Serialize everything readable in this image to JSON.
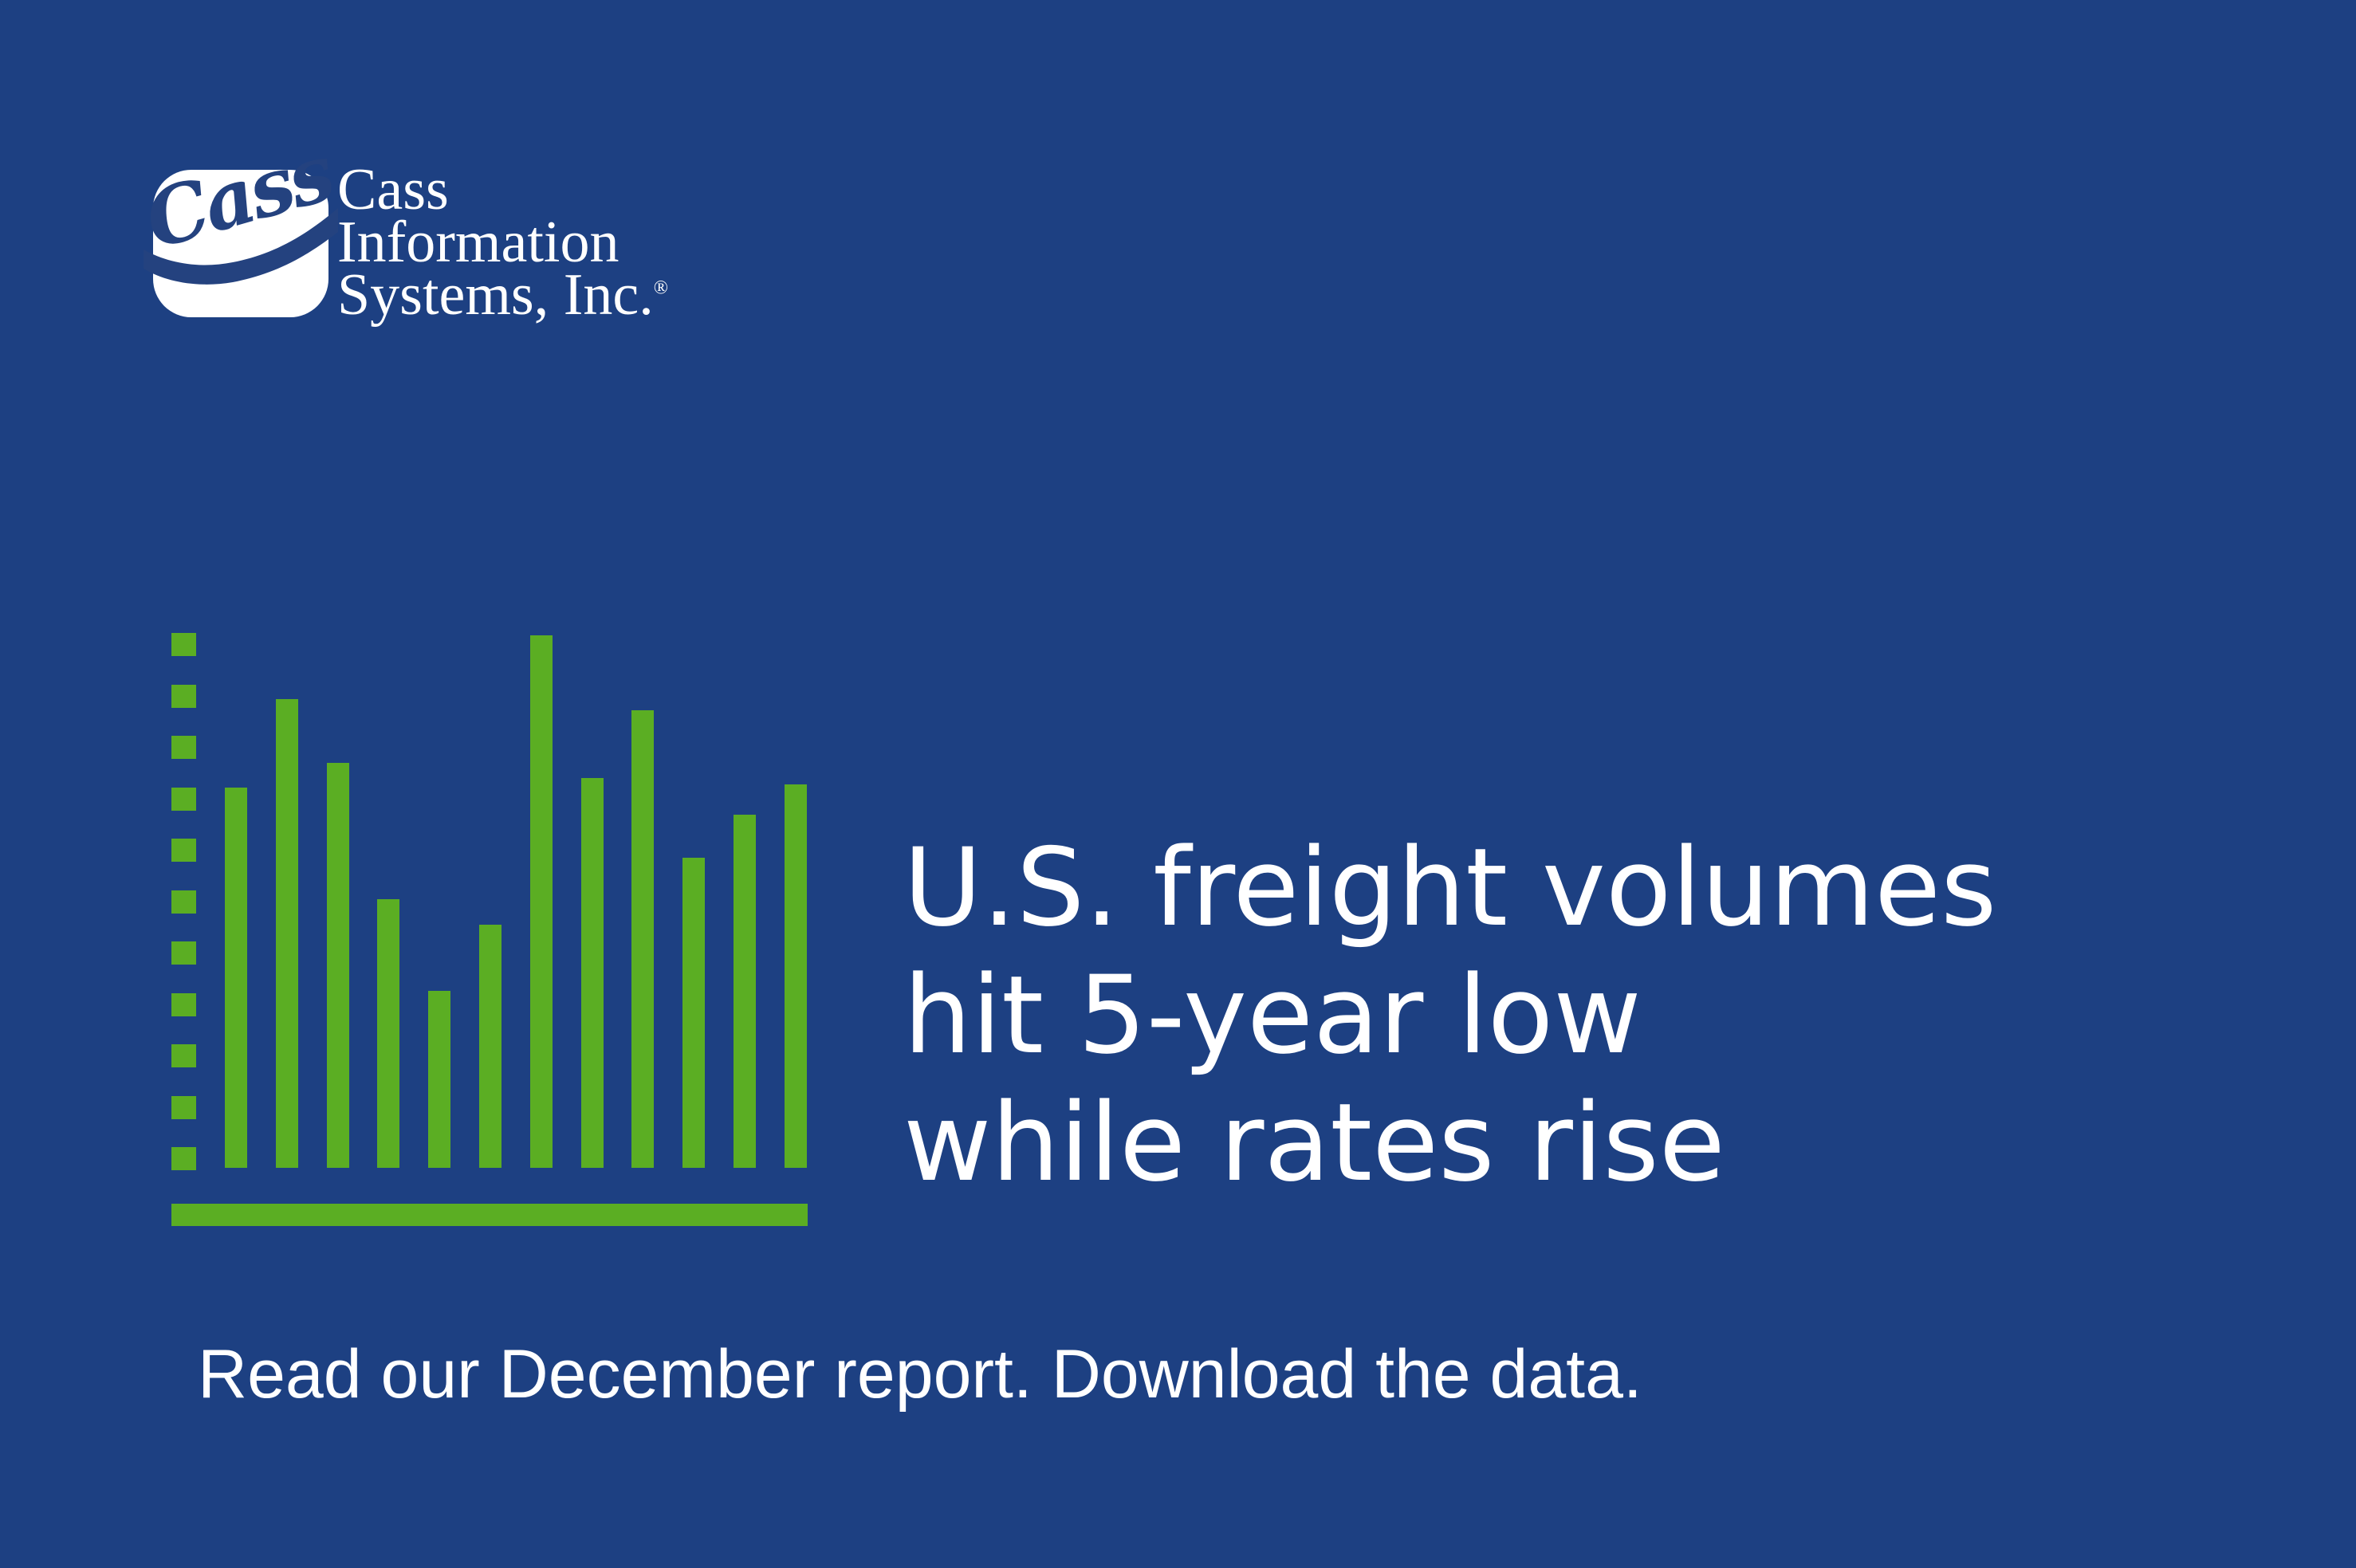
{
  "colors": {
    "background": "#1D4082",
    "green": "#5BAE23",
    "white": "#FFFFFF",
    "logo_blue": "#24427F"
  },
  "logo": {
    "badge_text": "Cass",
    "company_lines": [
      "Cass",
      "Information",
      "Systems, Inc."
    ],
    "registered_mark": "®"
  },
  "icon": {
    "name": "bar-chart-icon",
    "type": "decorative-bar-chart",
    "color": "#5BAE23",
    "axis_dash_count": 11,
    "bar_heights": [
      477,
      588,
      508,
      337,
      222,
      305,
      668,
      489,
      574,
      389,
      443,
      481
    ]
  },
  "headline": {
    "lines": [
      "U.S. freight volumes",
      "hit 5-year low",
      "while rates rise"
    ]
  },
  "caption": "Read our December report. Download the data."
}
